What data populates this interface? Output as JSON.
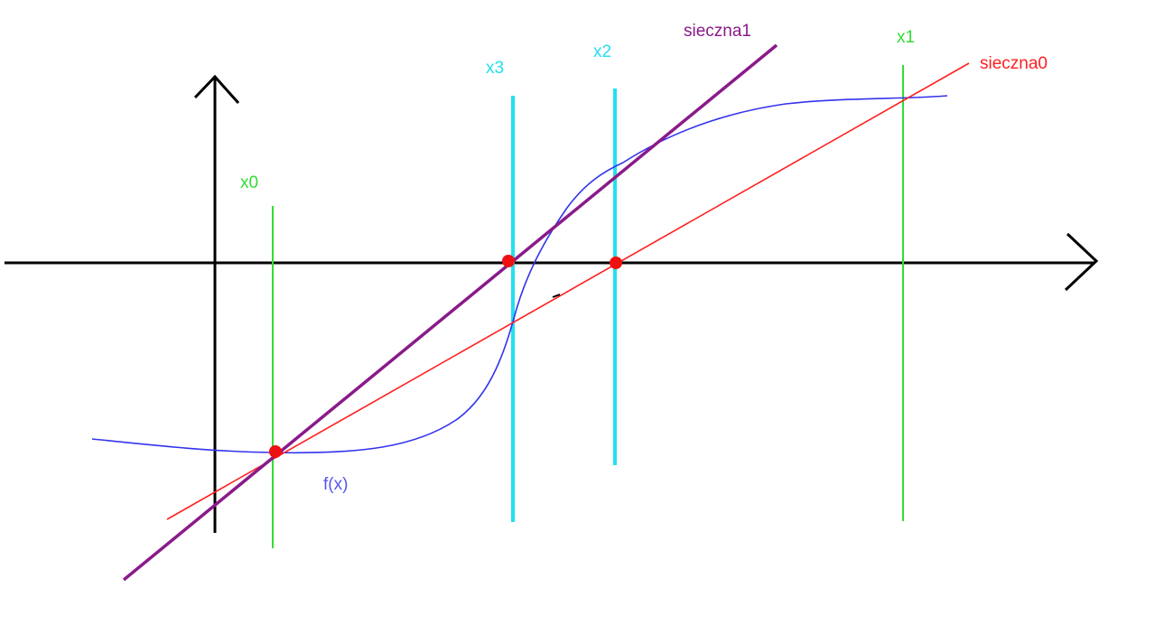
{
  "labels": {
    "x0": "x0",
    "x1": "x1",
    "x2": "x2",
    "x3": "x3",
    "secant0": "sieczna0",
    "secant1": "sieczna1",
    "function": "f(x)"
  },
  "colors": {
    "axes": "#000000",
    "function_curve": "#3333ee",
    "secant0": "#ff2020",
    "secant1": "#8a1a8a",
    "x0_x1_lines": "#33dd33",
    "x2_x3_lines": "#22e0ee",
    "points": "#ee1111",
    "label_function": "#5555ee"
  }
}
